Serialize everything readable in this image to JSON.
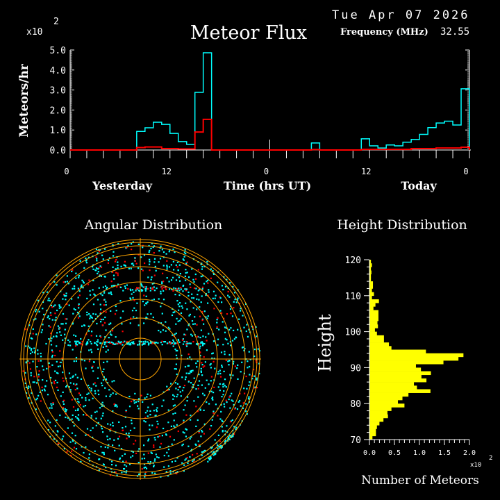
{
  "header": {
    "date": "Tue Apr 07 2026",
    "frequency_label": "Frequency (MHz)",
    "frequency_value": "32.55"
  },
  "colors": {
    "total": "#00ffff",
    "subset": "#ff0000",
    "rings": "#ffa500",
    "height_bars": "#ffff00"
  },
  "chart_data": [
    {
      "type": "bar",
      "title": "Meteor Flux",
      "ylabel": "Meteors/hr",
      "xlabel": "Time (hrs UT)",
      "y_multiplier": "x10",
      "y_multiplier_exp": "2",
      "ylim": [
        0,
        5
      ],
      "yticks": [
        "0.0",
        "1.0",
        "2.0",
        "3.0",
        "4.0",
        "5.0"
      ],
      "xticks": [
        "0",
        "12",
        "0",
        "12",
        "0"
      ],
      "day_labels": [
        "Yesterday",
        "Today"
      ],
      "bin_hours": 1,
      "series": [
        {
          "name": "total",
          "values": [
            0,
            0,
            0,
            0,
            0,
            0,
            0,
            0,
            0.93,
            1.11,
            1.39,
            1.28,
            0.83,
            0.42,
            0.28,
            2.88,
            4.86,
            0,
            0,
            0,
            0,
            0,
            0,
            0,
            0,
            0,
            0,
            0,
            0,
            0.35,
            0,
            0,
            0,
            0,
            0,
            0.56,
            0.21,
            0.1,
            0.25,
            0.21,
            0.39,
            0.53,
            0.78,
            1.12,
            1.35,
            1.44,
            1.25,
            3.06
          ]
        },
        {
          "name": "subset",
          "values": [
            0,
            0,
            0,
            0,
            0,
            0,
            0,
            0,
            0.12,
            0.15,
            0.15,
            0.07,
            0.07,
            0.05,
            0.05,
            0.9,
            1.53,
            0,
            0,
            0,
            0,
            0,
            0,
            0,
            0,
            0,
            0,
            0,
            0,
            0.02,
            0,
            0,
            0,
            0,
            0,
            0.03,
            0.03,
            0.03,
            0.03,
            0.03,
            0.03,
            0.07,
            0.07,
            0.07,
            0.1,
            0.1,
            0.1,
            0.14
          ]
        }
      ]
    },
    {
      "type": "scatter",
      "title": "Angular Distribution",
      "rings": 9
    },
    {
      "type": "bar",
      "orientation": "horizontal",
      "title": "Height Distribution",
      "ylabel": "Height",
      "xlabel": "Number of Meteors",
      "x_multiplier": "x10",
      "x_multiplier_exp": "2",
      "xlim": [
        0,
        2
      ],
      "ylim": [
        70,
        120
      ],
      "xticks": [
        "0.0",
        "0.5",
        "1.0",
        "1.5",
        "2.0"
      ],
      "yticks": [
        "70",
        "80",
        "90",
        "100",
        "110",
        "120"
      ],
      "heights_start": 70,
      "values": [
        0.06,
        0.13,
        0.13,
        0.15,
        0.2,
        0.28,
        0.37,
        0.36,
        0.44,
        0.7,
        0.57,
        0.66,
        0.78,
        1.22,
        0.95,
        0.89,
        1.14,
        1.04,
        1.23,
        1.03,
        0.93,
        1.48,
        1.78,
        1.88,
        1.13,
        0.44,
        0.39,
        0.29,
        0.29,
        0.15,
        0.11,
        0.17,
        0.16,
        0.18,
        0.18,
        0.18,
        0.08,
        0.12,
        0.19,
        0.05,
        0.09,
        0.05,
        0.07,
        0.07,
        0.03,
        0.03,
        0.04,
        0.03,
        0.05,
        0.03
      ]
    }
  ]
}
